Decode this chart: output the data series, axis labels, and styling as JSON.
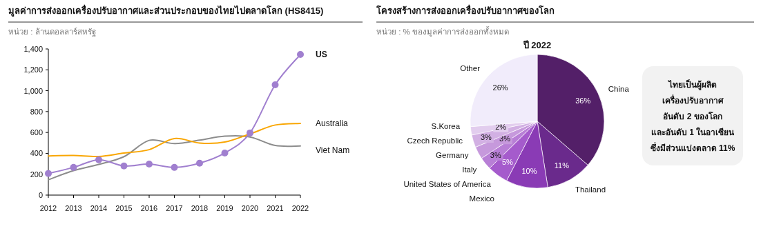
{
  "chart_data": [
    {
      "type": "line",
      "title": "มูลค่าการส่งออกเครื่องปรับอากาศและส่วนประกอบของไทยไปตลาดโลก  (HS8415)",
      "subtitle": "หน่วย : ล้านดอลลาร์สหรัฐ",
      "x": [
        2012,
        2013,
        2014,
        2015,
        2016,
        2017,
        2018,
        2019,
        2020,
        2021,
        2022
      ],
      "xlim": [
        2012,
        2022
      ],
      "xticks": [
        2012,
        2013,
        2014,
        2015,
        2016,
        2017,
        2018,
        2019,
        2020,
        2021,
        2022
      ],
      "ylim": [
        0,
        1400
      ],
      "yticks": [
        {
          "value": 0,
          "label": "0"
        },
        {
          "value": 200,
          "label": "200"
        },
        {
          "value": 400,
          "label": "400"
        },
        {
          "value": 600,
          "label": "600"
        },
        {
          "value": 800,
          "label": "800"
        },
        {
          "value": 1000,
          "label": "1,000"
        },
        {
          "value": 1200,
          "label": "1,200"
        },
        {
          "value": 1400,
          "label": "1,400"
        }
      ],
      "grid": false,
      "legend": false,
      "series": [
        {
          "name": "US",
          "color": "#a07fcf",
          "marker": "circle",
          "values": [
            207,
            265,
            339,
            279,
            297,
            265,
            305,
            403,
            595,
            1057,
            1347
          ]
        },
        {
          "name": "Australia",
          "color": "#f9a602",
          "marker": "none",
          "values": [
            375,
            379,
            370,
            403,
            435,
            542,
            499,
            508,
            586,
            671,
            687
          ]
        },
        {
          "name": "Viet Nam",
          "color": "#8c8c8c",
          "marker": "none",
          "values": [
            147,
            234,
            294,
            368,
            524,
            493,
            526,
            564,
            557,
            475,
            470
          ]
        }
      ]
    },
    {
      "type": "pie",
      "title": "โครงสร้างการส่งออกเครื่องปรับอากาศของโลก",
      "subtitle": "หน่วย : % ของมูลค่าการส่งออกทั้งหมด",
      "annotations": [
        "ปี 2022"
      ],
      "value_labels": [
        "36%",
        "11%",
        "10%",
        "5%",
        "3%",
        "3%",
        "3%",
        "2%",
        "26%"
      ],
      "categories": [
        "China",
        "Thailand",
        "Mexico",
        "United States of America",
        "Italy",
        "Germany",
        "Czech Republic",
        "S.Korea",
        "Other"
      ],
      "values": [
        36,
        11,
        10,
        5,
        3,
        3,
        3,
        2,
        26
      ],
      "colors": [
        "#531f68",
        "#6a2a8c",
        "#8a3bb5",
        "#a55bcc",
        "#b87fd6",
        "#c699dc",
        "#d2b0e3",
        "#e2cdee",
        "#f1ecfb"
      ]
    },
    {
      "type": "other",
      "annotations": [
        "ไทยเป็นผู้ผลิต",
        "เครื่องปรับอากาศ",
        "อันดับ 2 ของโลก",
        "และอันดับ 1 ในอาเซียน",
        "ซึ่งมีส่วนแบ่งตลาด 11%"
      ]
    }
  ]
}
